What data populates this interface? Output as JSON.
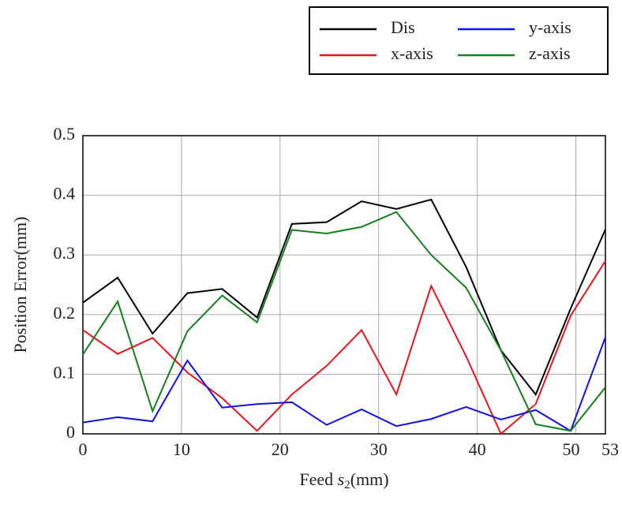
{
  "chart_data": {
    "type": "line",
    "ylabel": "Position Error(mm)",
    "xlabel": {
      "prefix": "Feed",
      "symbol": "s",
      "subscript": "2",
      "suffix": "(mm)"
    },
    "x": [
      0,
      3.53,
      7.07,
      10.6,
      14.13,
      17.67,
      21.2,
      24.73,
      28.27,
      31.8,
      35.33,
      38.87,
      42.4,
      45.93,
      49.47,
      53
    ],
    "series": [
      {
        "name": "Dis",
        "color": "#000000",
        "values": [
          0.22,
          0.262,
          0.168,
          0.236,
          0.243,
          0.195,
          0.352,
          0.355,
          0.39,
          0.377,
          0.393,
          0.28,
          0.14,
          0.066,
          0.21,
          0.343
        ]
      },
      {
        "name": "x-axis",
        "color": "#e8141b",
        "values": [
          0.174,
          0.134,
          0.161,
          0.103,
          0.06,
          0.005,
          0.066,
          0.114,
          0.174,
          0.066,
          0.248,
          0.13,
          0.0,
          0.05,
          0.198,
          0.29
        ]
      },
      {
        "name": "y-axis",
        "color": "#1010e8",
        "values": [
          0.019,
          0.028,
          0.021,
          0.123,
          0.044,
          0.05,
          0.053,
          0.015,
          0.041,
          0.013,
          0.025,
          0.045,
          0.024,
          0.04,
          0.005,
          0.162
        ]
      },
      {
        "name": "z-axis",
        "color": "#14801a",
        "values": [
          0.133,
          0.222,
          0.038,
          0.172,
          0.232,
          0.187,
          0.342,
          0.336,
          0.347,
          0.372,
          0.3,
          0.245,
          0.14,
          0.016,
          0.005,
          0.078
        ]
      }
    ],
    "xlim": [
      0,
      53
    ],
    "xticks": [
      0,
      10,
      20,
      30,
      40,
      50,
      53
    ],
    "ylim": [
      0,
      0.5
    ],
    "yticks": [
      0,
      0.1,
      0.2,
      0.3,
      0.4,
      0.5
    ],
    "grid": true,
    "legend": "top-right"
  }
}
